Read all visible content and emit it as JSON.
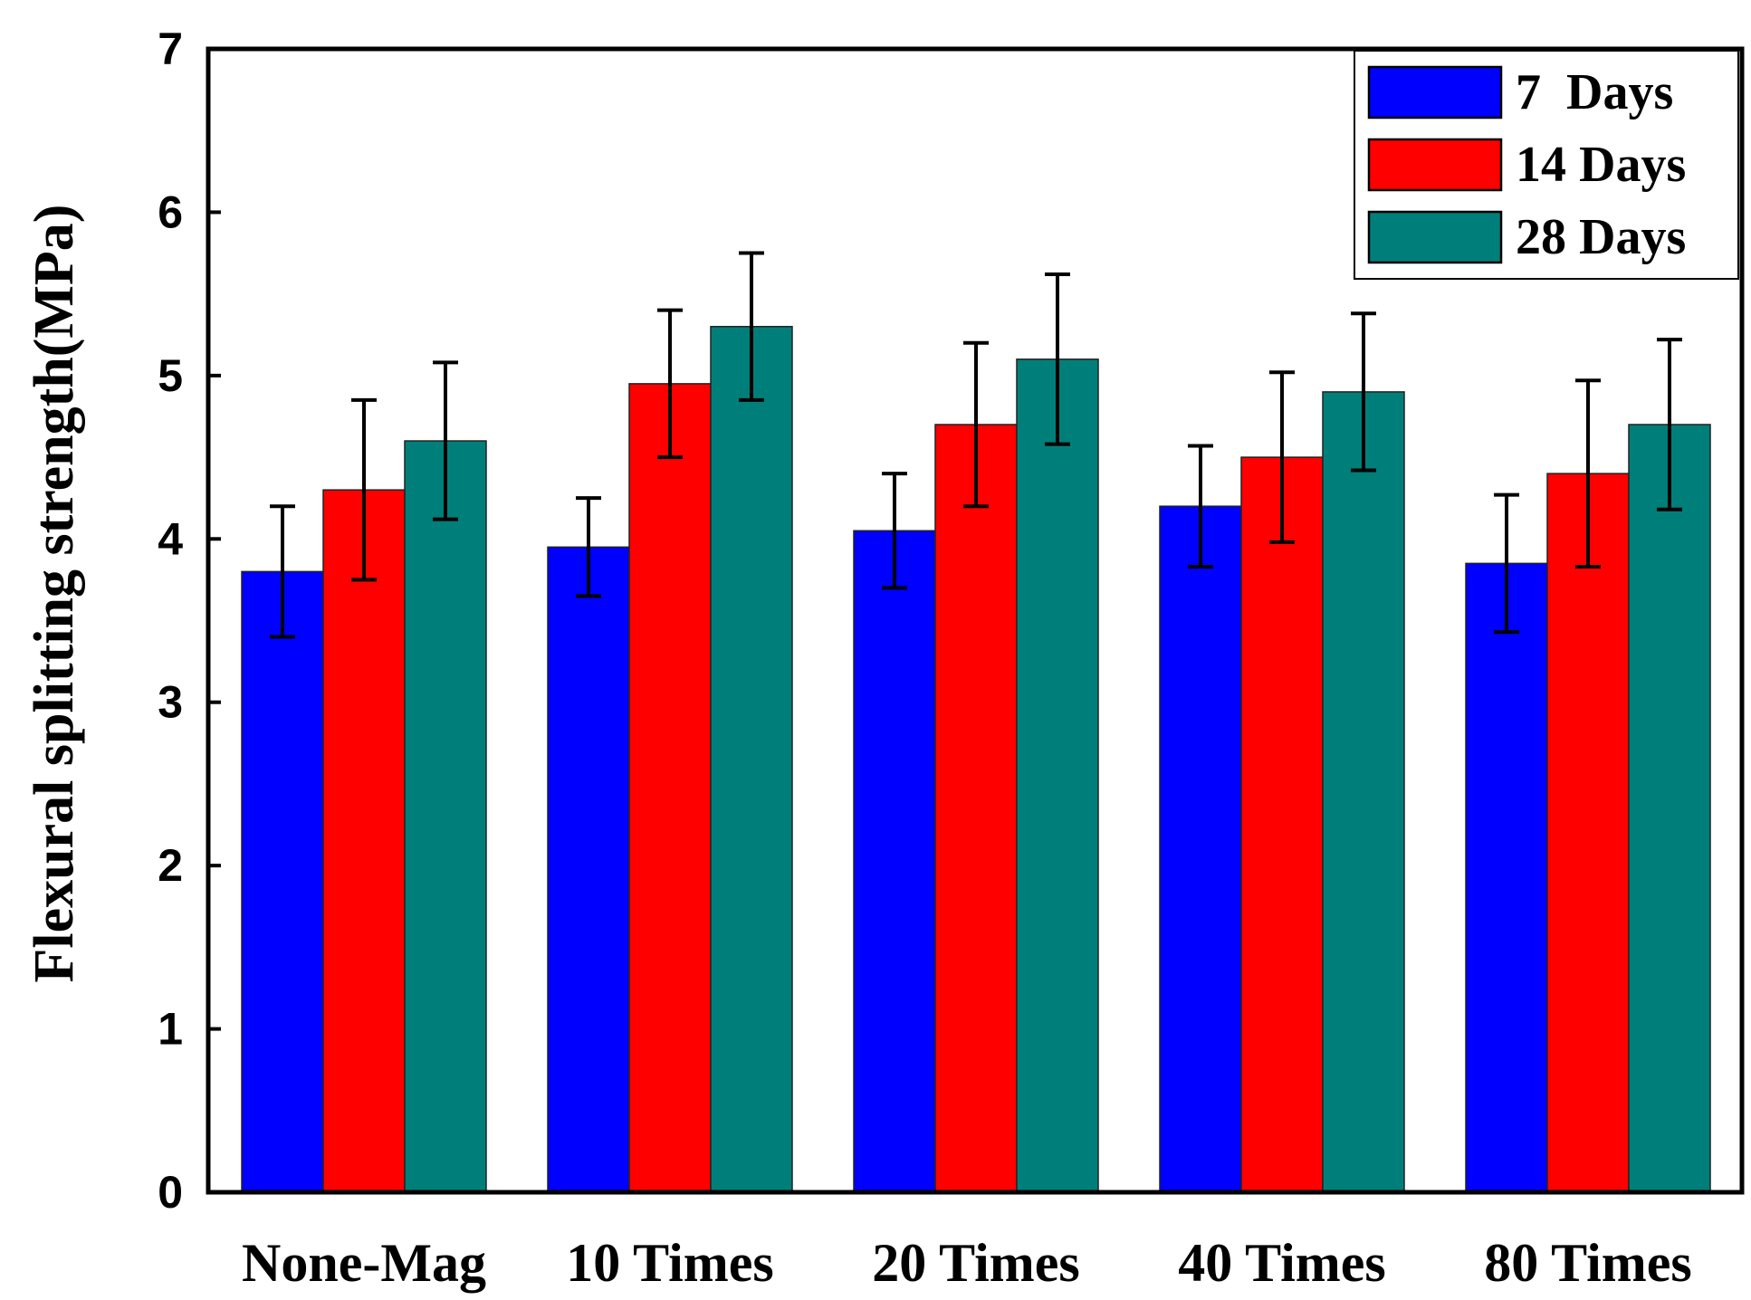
{
  "chart_data": {
    "type": "bar",
    "title": "",
    "xlabel": "",
    "ylabel": "Flexural splitting strength(MPa)",
    "ylim": [
      0,
      7
    ],
    "yticks": [
      0,
      1,
      2,
      3,
      4,
      5,
      6,
      7
    ],
    "grid": false,
    "legend_position": "top-right",
    "categories": [
      "None-Mag",
      "10 Times",
      "20 Times",
      "40 Times",
      "80 Times"
    ],
    "series": [
      {
        "name": "7  Days",
        "color": "#0000ff",
        "values": [
          3.8,
          3.95,
          4.05,
          4.2,
          3.85
        ],
        "errors": [
          0.4,
          0.3,
          0.35,
          0.37,
          0.42
        ]
      },
      {
        "name": "14 Days",
        "color": "#ff0000",
        "values": [
          4.3,
          4.95,
          4.7,
          4.5,
          4.4
        ],
        "errors": [
          0.55,
          0.45,
          0.5,
          0.52,
          0.57
        ]
      },
      {
        "name": "28 Days",
        "color": "#007f7a",
        "values": [
          4.6,
          5.3,
          5.1,
          4.9,
          4.7
        ],
        "errors": [
          0.48,
          0.45,
          0.52,
          0.48,
          0.52
        ]
      }
    ]
  }
}
